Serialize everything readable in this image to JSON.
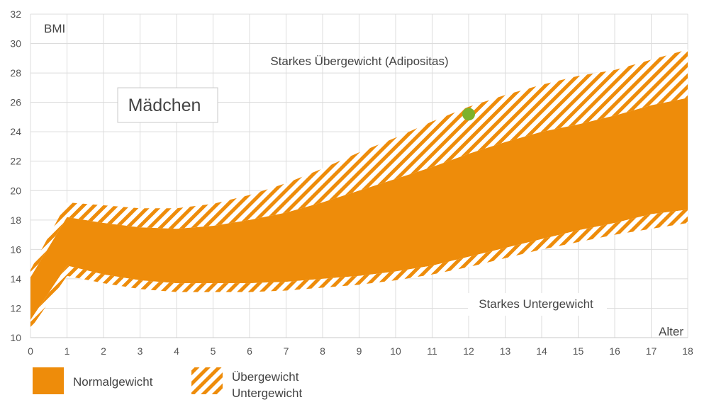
{
  "chart_data": {
    "type": "area",
    "title": "",
    "group_label": "Mädchen",
    "ylabel": "BMI",
    "xlabel": "Alter",
    "xlim": [
      0,
      18
    ],
    "ylim": [
      10,
      32
    ],
    "x_ticks": [
      0,
      1,
      2,
      3,
      4,
      5,
      6,
      7,
      8,
      9,
      10,
      11,
      12,
      13,
      14,
      15,
      16,
      17,
      18
    ],
    "y_ticks": [
      10,
      12,
      14,
      16,
      18,
      20,
      22,
      24,
      26,
      28,
      30,
      32
    ],
    "grid": true,
    "x": [
      0,
      1,
      2,
      3,
      4,
      5,
      6,
      7,
      8,
      9,
      10,
      11,
      12,
      13,
      14,
      15,
      16,
      17,
      18
    ],
    "bands": {
      "obese_upper": [
        14.6,
        19.2,
        19.0,
        18.8,
        18.8,
        19.1,
        19.7,
        20.5,
        21.5,
        22.6,
        23.6,
        24.7,
        25.7,
        26.5,
        27.2,
        27.8,
        28.2,
        28.9,
        29.6
      ],
      "normal_upper": [
        14.1,
        18.2,
        17.8,
        17.5,
        17.4,
        17.6,
        18.0,
        18.5,
        19.2,
        20.0,
        20.8,
        21.6,
        22.5,
        23.3,
        24.0,
        24.5,
        25.1,
        25.8,
        26.3
      ],
      "normal_lower": [
        11.2,
        14.9,
        14.3,
        13.9,
        13.7,
        13.7,
        13.7,
        13.8,
        14.0,
        14.2,
        14.5,
        14.9,
        15.5,
        16.1,
        16.7,
        17.3,
        17.8,
        18.4,
        18.7
      ],
      "under_lower": [
        10.6,
        14.2,
        13.7,
        13.3,
        13.1,
        13.1,
        13.1,
        13.2,
        13.4,
        13.6,
        13.9,
        14.3,
        14.8,
        15.4,
        16.0,
        16.5,
        17.0,
        17.4,
        17.8
      ]
    },
    "marker": {
      "x": 12,
      "y": 25.2,
      "color": "#7db22b"
    },
    "annotations": {
      "top": "Starkes Übergewicht (Adipositas)",
      "bottom": "Starkes Untergewicht"
    },
    "legend": {
      "normal": "Normalgewicht",
      "hatch_line1": "Übergewicht",
      "hatch_line2": "Untergewicht"
    },
    "colors": {
      "normal": "#ee8c0a",
      "hatch": "#ee8c0a",
      "grid": "#dcdcdc",
      "axis": "#c8c8c8"
    }
  }
}
